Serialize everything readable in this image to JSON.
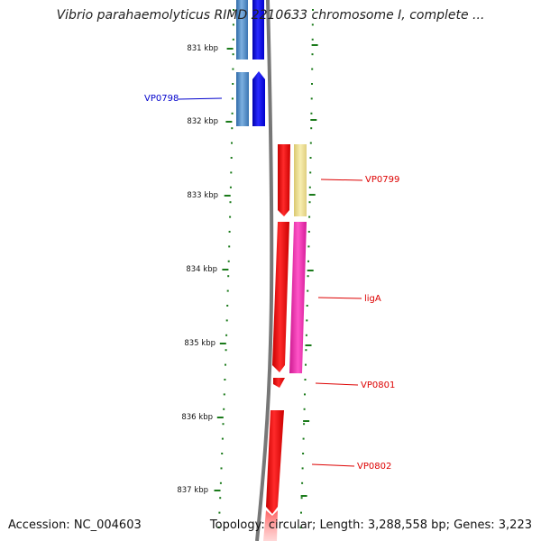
{
  "title": "Vibrio parahaemolyticus RIMD 2210633 chromosome I, complete ...",
  "footer": {
    "accession": "Accession: NC_004603",
    "summary": "Topology: circular; Length: 3,288,558 bp; Genes: 3,223"
  },
  "ticks": [
    "831 kbp",
    "832 kbp",
    "833 kbp",
    "834 kbp",
    "835 kbp",
    "836 kbp",
    "837 kbp"
  ],
  "genes": [
    {
      "label": "VP0798",
      "color": "#0000cc"
    },
    {
      "label": "VP0799",
      "color": "#dd0000"
    },
    {
      "label": "ligA",
      "color": "#dd0000"
    },
    {
      "label": "VP0801",
      "color": "#dd0000"
    },
    {
      "label": "VP0802",
      "color": "#dd0000"
    }
  ],
  "colors": {
    "backbone": "#7a7a7a",
    "ticks": "#1a7a1a",
    "blue_gene": "#0000ee",
    "steel_gene": "#4a86c4",
    "red_gene": "#ee0000",
    "tan_gene": "#eedd88",
    "magenta_gene": "#ee2aaa"
  }
}
